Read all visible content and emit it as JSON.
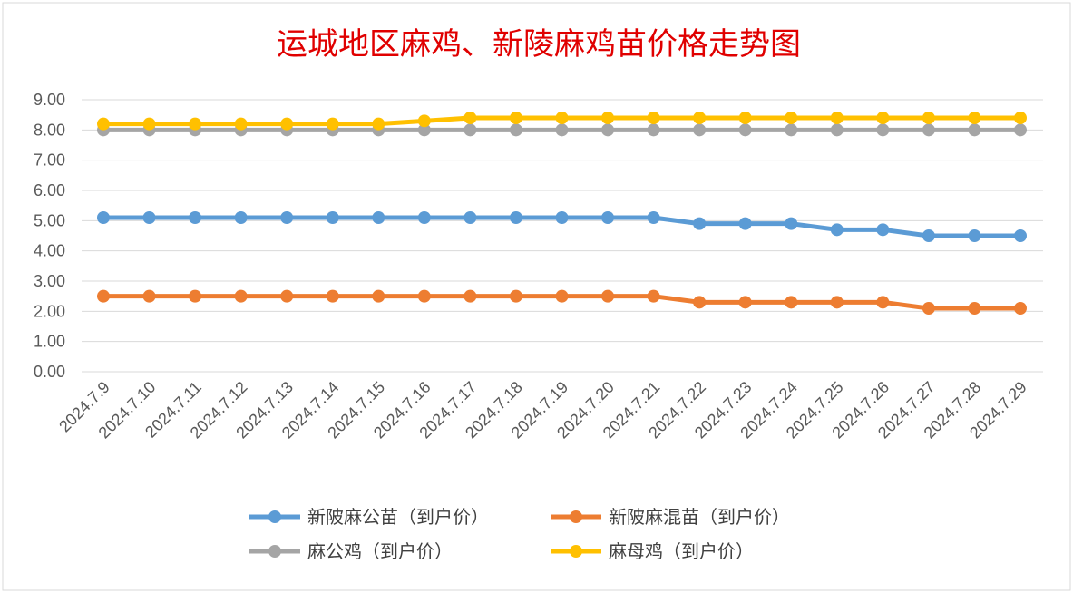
{
  "chart_data": {
    "type": "line",
    "title": "运城地区麻鸡、新陵麻鸡苗价格走势图",
    "xlabel": "",
    "ylabel": "",
    "ylim": [
      0,
      9
    ],
    "y_ticks": [
      "0.00",
      "1.00",
      "2.00",
      "3.00",
      "4.00",
      "5.00",
      "6.00",
      "7.00",
      "8.00",
      "9.00"
    ],
    "grid": true,
    "legend_position": "bottom",
    "categories": [
      "2024.7.9",
      "2024.7.10",
      "2024.7.11",
      "2024.7.12",
      "2024.7.13",
      "2024.7.14",
      "2024.7.15",
      "2024.7.16",
      "2024.7.17",
      "2024.7.18",
      "2024.7.19",
      "2024.7.20",
      "2024.7.21",
      "2024.7.22",
      "2024.7.23",
      "2024.7.24",
      "2024.7.25",
      "2024.7.26",
      "2024.7.27",
      "2024.7.28",
      "2024.7.29"
    ],
    "series": [
      {
        "name": "新陂麻公苗（到户价）",
        "color": "#5b9bd5",
        "values": [
          5.1,
          5.1,
          5.1,
          5.1,
          5.1,
          5.1,
          5.1,
          5.1,
          5.1,
          5.1,
          5.1,
          5.1,
          5.1,
          4.9,
          4.9,
          4.9,
          4.7,
          4.7,
          4.5,
          4.5,
          4.5
        ]
      },
      {
        "name": "新陂麻混苗（到户价）",
        "color": "#ed7d31",
        "values": [
          2.5,
          2.5,
          2.5,
          2.5,
          2.5,
          2.5,
          2.5,
          2.5,
          2.5,
          2.5,
          2.5,
          2.5,
          2.5,
          2.3,
          2.3,
          2.3,
          2.3,
          2.3,
          2.1,
          2.1,
          2.1
        ]
      },
      {
        "name": "麻公鸡（到户价）",
        "color": "#a5a5a5",
        "values": [
          8,
          8,
          8,
          8,
          8,
          8,
          8,
          8,
          8,
          8,
          8,
          8,
          8,
          8,
          8,
          8,
          8,
          8,
          8,
          8,
          8
        ]
      },
      {
        "name": "麻母鸡（到户价）",
        "color": "#ffc000",
        "values": [
          8.2,
          8.2,
          8.2,
          8.2,
          8.2,
          8.2,
          8.2,
          8.3,
          8.4,
          8.4,
          8.4,
          8.4,
          8.4,
          8.4,
          8.4,
          8.4,
          8.4,
          8.4,
          8.4,
          8.4,
          8.4
        ]
      }
    ]
  }
}
